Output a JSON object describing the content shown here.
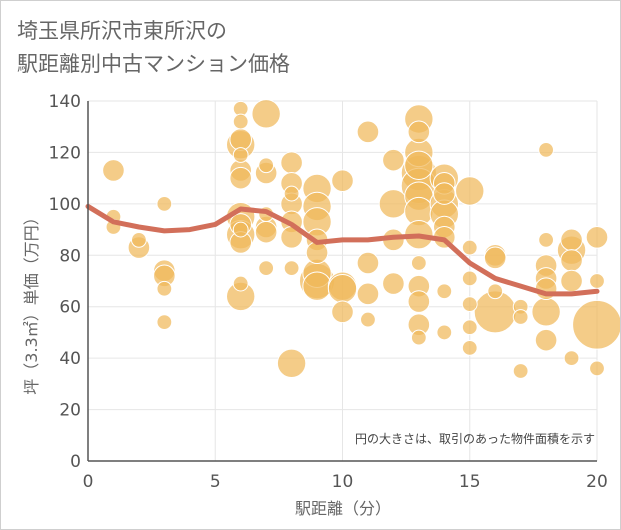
{
  "title": {
    "line1": "埼玉県所沢市東所沢の",
    "line2": "駅距離別中古マンション価格"
  },
  "colors": {
    "bubble": "#f0b85a",
    "bubble_stroke": "#ffffff",
    "trend": "#d26f5a",
    "grid": "#e6e6e6",
    "axis": "#555555"
  },
  "chart_data": {
    "type": "scatter",
    "xlabel": "駅距離（分）",
    "ylabel": "坪（3.3㎡）単価（万円）",
    "xlim": [
      0,
      20
    ],
    "ylim": [
      0,
      140
    ],
    "x_ticks": [
      0,
      5,
      10,
      15,
      20
    ],
    "y_ticks": [
      0,
      20,
      40,
      60,
      80,
      100,
      120,
      140
    ],
    "grid": true,
    "note": "円の大きさは、取引のあった物件面積を示す",
    "bubble_size": "物件面積",
    "points": [
      {
        "x": 1,
        "y": 113,
        "s": 2
      },
      {
        "x": 1,
        "y": 95,
        "s": 1
      },
      {
        "x": 1,
        "y": 91,
        "s": 1
      },
      {
        "x": 2,
        "y": 83,
        "s": 2
      },
      {
        "x": 2,
        "y": 86,
        "s": 1
      },
      {
        "x": 3,
        "y": 100,
        "s": 1
      },
      {
        "x": 3,
        "y": 74,
        "s": 2
      },
      {
        "x": 3,
        "y": 72,
        "s": 2
      },
      {
        "x": 3,
        "y": 67,
        "s": 1
      },
      {
        "x": 3,
        "y": 54,
        "s": 1
      },
      {
        "x": 6,
        "y": 137,
        "s": 1
      },
      {
        "x": 6,
        "y": 132,
        "s": 1
      },
      {
        "x": 6,
        "y": 125,
        "s": 2
      },
      {
        "x": 6,
        "y": 123,
        "s": 3
      },
      {
        "x": 6,
        "y": 119,
        "s": 1
      },
      {
        "x": 6,
        "y": 113,
        "s": 2
      },
      {
        "x": 6,
        "y": 110,
        "s": 2
      },
      {
        "x": 6,
        "y": 95,
        "s": 3
      },
      {
        "x": 6,
        "y": 92,
        "s": 2
      },
      {
        "x": 6,
        "y": 90,
        "s": 1
      },
      {
        "x": 6,
        "y": 88,
        "s": 3
      },
      {
        "x": 6,
        "y": 85,
        "s": 2
      },
      {
        "x": 6,
        "y": 69,
        "s": 1
      },
      {
        "x": 6,
        "y": 64,
        "s": 3
      },
      {
        "x": 7,
        "y": 135,
        "s": 3
      },
      {
        "x": 7,
        "y": 115,
        "s": 1
      },
      {
        "x": 7,
        "y": 112,
        "s": 2
      },
      {
        "x": 7,
        "y": 96,
        "s": 1
      },
      {
        "x": 7,
        "y": 91,
        "s": 2
      },
      {
        "x": 7,
        "y": 89,
        "s": 2
      },
      {
        "x": 7,
        "y": 75,
        "s": 1
      },
      {
        "x": 8,
        "y": 116,
        "s": 2
      },
      {
        "x": 8,
        "y": 108,
        "s": 2
      },
      {
        "x": 8,
        "y": 104,
        "s": 1
      },
      {
        "x": 8,
        "y": 100,
        "s": 2
      },
      {
        "x": 8,
        "y": 93,
        "s": 2
      },
      {
        "x": 8,
        "y": 87,
        "s": 2
      },
      {
        "x": 8,
        "y": 75,
        "s": 1
      },
      {
        "x": 8,
        "y": 38,
        "s": 3
      },
      {
        "x": 9,
        "y": 106,
        "s": 3
      },
      {
        "x": 9,
        "y": 99,
        "s": 3
      },
      {
        "x": 9,
        "y": 93,
        "s": 3
      },
      {
        "x": 9,
        "y": 86,
        "s": 2
      },
      {
        "x": 9,
        "y": 81,
        "s": 2
      },
      {
        "x": 9,
        "y": 73,
        "s": 3
      },
      {
        "x": 9,
        "y": 70,
        "s": 4
      },
      {
        "x": 9,
        "y": 68,
        "s": 3
      },
      {
        "x": 10,
        "y": 109,
        "s": 2
      },
      {
        "x": 10,
        "y": 68,
        "s": 3
      },
      {
        "x": 10,
        "y": 67,
        "s": 3
      },
      {
        "x": 10,
        "y": 58,
        "s": 2
      },
      {
        "x": 11,
        "y": 128,
        "s": 2
      },
      {
        "x": 11,
        "y": 77,
        "s": 2
      },
      {
        "x": 11,
        "y": 65,
        "s": 2
      },
      {
        "x": 11,
        "y": 55,
        "s": 1
      },
      {
        "x": 12,
        "y": 117,
        "s": 2
      },
      {
        "x": 12,
        "y": 100,
        "s": 3
      },
      {
        "x": 12,
        "y": 86,
        "s": 2
      },
      {
        "x": 12,
        "y": 69,
        "s": 2
      },
      {
        "x": 13,
        "y": 133,
        "s": 3
      },
      {
        "x": 13,
        "y": 128,
        "s": 2
      },
      {
        "x": 13,
        "y": 120,
        "s": 3
      },
      {
        "x": 13,
        "y": 115,
        "s": 3
      },
      {
        "x": 13,
        "y": 112,
        "s": 4
      },
      {
        "x": 13,
        "y": 107,
        "s": 4
      },
      {
        "x": 13,
        "y": 103,
        "s": 3
      },
      {
        "x": 13,
        "y": 97,
        "s": 3
      },
      {
        "x": 13,
        "y": 88,
        "s": 3
      },
      {
        "x": 13,
        "y": 77,
        "s": 1
      },
      {
        "x": 13,
        "y": 68,
        "s": 2
      },
      {
        "x": 13,
        "y": 62,
        "s": 2
      },
      {
        "x": 13,
        "y": 53,
        "s": 2
      },
      {
        "x": 13,
        "y": 48,
        "s": 1
      },
      {
        "x": 14,
        "y": 110,
        "s": 3
      },
      {
        "x": 14,
        "y": 108,
        "s": 2
      },
      {
        "x": 14,
        "y": 104,
        "s": 2
      },
      {
        "x": 14,
        "y": 100,
        "s": 3
      },
      {
        "x": 14,
        "y": 96,
        "s": 3
      },
      {
        "x": 14,
        "y": 91,
        "s": 2
      },
      {
        "x": 14,
        "y": 87,
        "s": 2
      },
      {
        "x": 14,
        "y": 66,
        "s": 1
      },
      {
        "x": 14,
        "y": 50,
        "s": 1
      },
      {
        "x": 15,
        "y": 105,
        "s": 3
      },
      {
        "x": 15,
        "y": 83,
        "s": 1
      },
      {
        "x": 15,
        "y": 71,
        "s": 1
      },
      {
        "x": 15,
        "y": 61,
        "s": 1
      },
      {
        "x": 15,
        "y": 52,
        "s": 1
      },
      {
        "x": 15,
        "y": 44,
        "s": 1
      },
      {
        "x": 16,
        "y": 80,
        "s": 2
      },
      {
        "x": 16,
        "y": 79,
        "s": 2
      },
      {
        "x": 16,
        "y": 66,
        "s": 1
      },
      {
        "x": 16,
        "y": 58,
        "s": 5
      },
      {
        "x": 17,
        "y": 60,
        "s": 1
      },
      {
        "x": 17,
        "y": 56,
        "s": 1
      },
      {
        "x": 17,
        "y": 35,
        "s": 1
      },
      {
        "x": 18,
        "y": 121,
        "s": 1
      },
      {
        "x": 18,
        "y": 86,
        "s": 1
      },
      {
        "x": 18,
        "y": 76,
        "s": 2
      },
      {
        "x": 18,
        "y": 71,
        "s": 2
      },
      {
        "x": 18,
        "y": 67,
        "s": 2
      },
      {
        "x": 18,
        "y": 58,
        "s": 3
      },
      {
        "x": 18,
        "y": 47,
        "s": 2
      },
      {
        "x": 19,
        "y": 86,
        "s": 2
      },
      {
        "x": 19,
        "y": 82,
        "s": 3
      },
      {
        "x": 19,
        "y": 78,
        "s": 2
      },
      {
        "x": 19,
        "y": 70,
        "s": 2
      },
      {
        "x": 19,
        "y": 40,
        "s": 1
      },
      {
        "x": 20,
        "y": 87,
        "s": 2
      },
      {
        "x": 20,
        "y": 70,
        "s": 1
      },
      {
        "x": 20,
        "y": 53,
        "s": 6
      },
      {
        "x": 20,
        "y": 36,
        "s": 1
      }
    ],
    "trend": {
      "x": [
        0,
        1,
        2,
        3,
        4,
        5,
        6,
        7,
        8,
        9,
        10,
        11,
        12,
        13,
        14,
        15,
        16,
        17,
        18,
        19,
        20
      ],
      "y": [
        99,
        93,
        91,
        89.5,
        90,
        92,
        98,
        97,
        92,
        85,
        86,
        86,
        87,
        87.5,
        86,
        77,
        71,
        68,
        65,
        65,
        66
      ]
    }
  }
}
